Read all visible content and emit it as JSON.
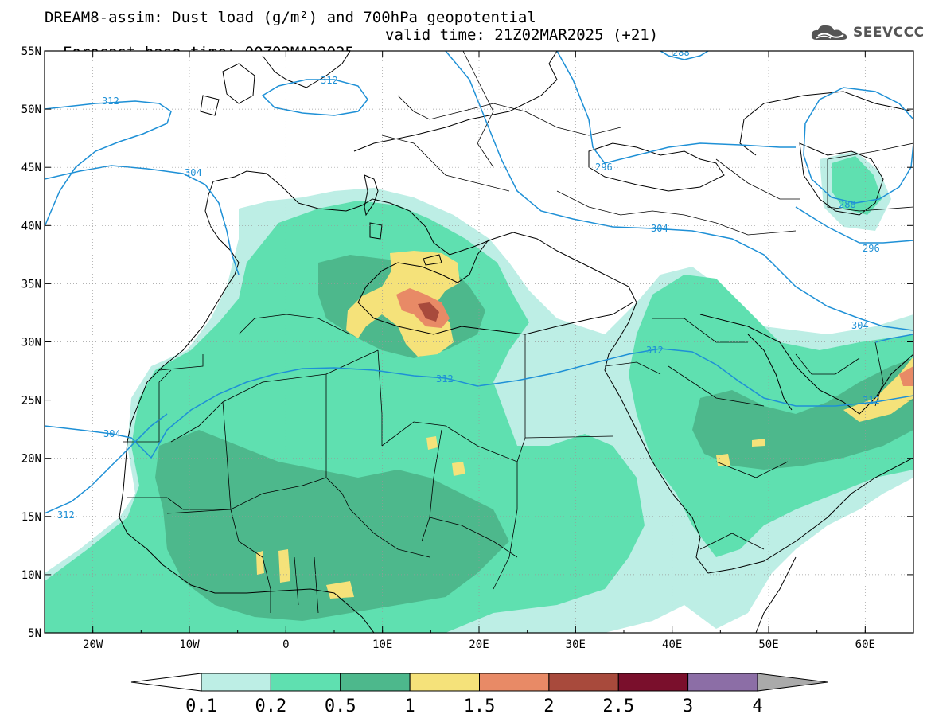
{
  "header": {
    "line1": "DREAM8-assim: Dust load (g/m²) and 700hPa geopotential",
    "line2_base": "Forecast base time: 00Z02MAR2025",
    "line2_valid": "valid time: 21Z02MAR2025 (+21)"
  },
  "logo": {
    "text": "SEEVCCC",
    "icon": "cloud-logo-icon"
  },
  "map": {
    "lat_ticks": [
      "55N",
      "50N",
      "45N",
      "40N",
      "35N",
      "30N",
      "25N",
      "20N",
      "15N",
      "10N",
      "5N"
    ],
    "lon_ticks": [
      "20W",
      "10W",
      "0",
      "10E",
      "20E",
      "30E",
      "40E",
      "50E",
      "60E"
    ],
    "lat_range": [
      5,
      55
    ],
    "lon_range": [
      -25,
      65
    ],
    "contour_labels": [
      "312",
      "312",
      "304",
      "296",
      "304",
      "312",
      "312",
      "304",
      "288",
      "296",
      "304",
      "312",
      "288"
    ]
  },
  "colorbar": {
    "ticks": [
      "0.1",
      "0.2",
      "0.5",
      "1",
      "1.5",
      "2",
      "2.5",
      "3",
      "4"
    ],
    "colors": [
      "#ffffff",
      "#bdeee5",
      "#5fe0b0",
      "#4db88c",
      "#f5e27a",
      "#e88a66",
      "#a84a3c",
      "#7a0f2c",
      "#8c6ea6",
      "#aaaaaa"
    ]
  },
  "colors": {
    "contour": "#1e90d6",
    "dust_01": "#bdeee5",
    "dust_02": "#5fe0b0",
    "dust_05": "#4db88c",
    "dust_1": "#f5e27a",
    "dust_15": "#e88a66",
    "dust_2": "#a84a3c"
  }
}
